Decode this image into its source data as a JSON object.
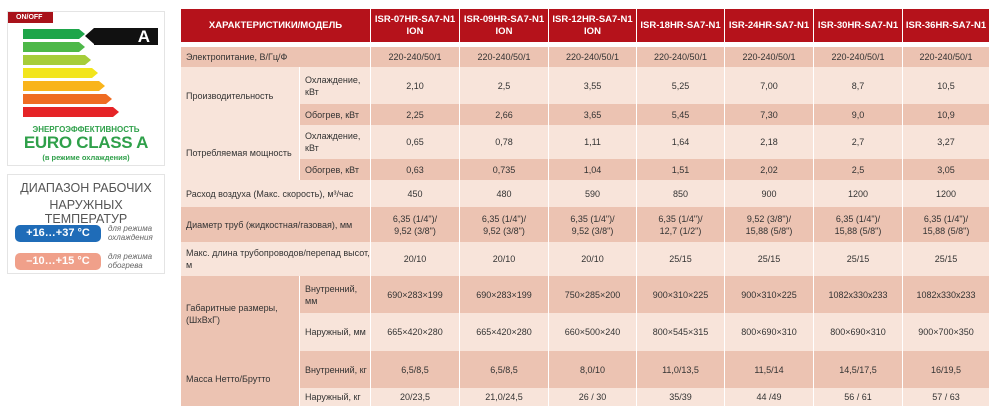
{
  "energy_label": {
    "onoff": "ON/OFF",
    "class_letter": "A",
    "title": "ЭНЕРГОЭФФЕКТИВНОСТЬ",
    "class_text": "EURO CLASS A",
    "note": "(в режиме охлаждения)",
    "bar_colors": [
      "#1ea54a",
      "#4db848",
      "#a6cd3a",
      "#f2e51c",
      "#f9b41b",
      "#ef6c23",
      "#e52427"
    ]
  },
  "temp_range": {
    "title1": "ДИАПАЗОН РАБОЧИХ",
    "title2": "НАРУЖНЫХ ТЕМПЕРАТУР",
    "cool_range": "+16…+37 °C",
    "cool_note": "для режима охлаждения",
    "heat_range": "–10…+15 °C",
    "heat_note": "для режима обогрева",
    "cool_color": "#1f6cb8",
    "heat_color": "#f0a08a"
  },
  "table": {
    "header": "ХАРАКТЕРИСТИКИ/МОДЕЛЬ",
    "models": [
      [
        "ISR-07HR-SA7-N1",
        "ION"
      ],
      [
        "ISR-09HR-SA7-N1",
        "ION"
      ],
      [
        "ISR-12HR-SA7-N1",
        "ION"
      ],
      [
        "ISR-18HR-SA7-N1",
        ""
      ],
      [
        "ISR-24HR-SA7-N1",
        ""
      ],
      [
        "ISR-30HR-SA7-N1",
        ""
      ],
      [
        "ISR-36HR-SA7-N1",
        ""
      ]
    ],
    "power": {
      "label": "Электропитание, В/Гц/Ф",
      "values": [
        "220-240/50/1",
        "220-240/50/1",
        "220-240/50/1",
        "220-240/50/1",
        "220-240/50/1",
        "220-240/50/1",
        "220-240/50/1"
      ]
    },
    "capacity": {
      "label": "Производительность",
      "cool": {
        "label": "Охлаждение, кВт",
        "values": [
          "2,10",
          "2,5",
          "3,55",
          "5,25",
          "7,00",
          "8,7",
          "10,5"
        ]
      },
      "heat": {
        "label": "Обогрев, кВт",
        "values": [
          "2,25",
          "2,66",
          "3,65",
          "5,45",
          "7,30",
          "9,0",
          "10,9"
        ]
      }
    },
    "consumption": {
      "label": "Потребляемая мощность",
      "cool": {
        "label": "Охлаждение, кВт",
        "values": [
          "0,65",
          "0,78",
          "1,11",
          "1,64",
          "2,18",
          "2,7",
          "3,27"
        ]
      },
      "heat": {
        "label": "Обогрев, кВт",
        "values": [
          "0,63",
          "0,735",
          "1,04",
          "1,51",
          "2,02",
          "2,5",
          "3,05"
        ]
      }
    },
    "airflow": {
      "label": "Расход воздуха (Макс. скорость), м³/час",
      "values": [
        "450",
        "480",
        "590",
        "850",
        "900",
        "1200",
        "1200"
      ]
    },
    "pipes": {
      "label": "Диаметр труб (жидкостная/газовая), мм",
      "values": [
        [
          "6,35 (1/4\")/",
          "9,52 (3/8\")"
        ],
        [
          "6,35 (1/4\")/",
          "9,52 (3/8\")"
        ],
        [
          "6,35 (1/4\")/",
          "9,52 (3/8\")"
        ],
        [
          "6,35 (1/4\")/",
          "12,7 (1/2\")"
        ],
        [
          "9,52 (3/8\")/",
          "15,88 (5/8\")"
        ],
        [
          "6,35 (1/4\")/",
          "15,88 (5/8\")"
        ],
        [
          "6,35 (1/4\")/",
          "15,88 (5/8\")"
        ]
      ]
    },
    "max_length": {
      "label": "Макс. длина трубопроводов/перепад высот, м",
      "values": [
        "20/10",
        "20/10",
        "20/10",
        "25/15",
        "25/15",
        "25/15",
        "25/15"
      ]
    },
    "dimensions": {
      "label": "Габаритные размеры, (ШхВхГ)",
      "indoor": {
        "label": "Внутренний, мм",
        "values": [
          "690×283×199",
          "690×283×199",
          "750×285×200",
          "900×310×225",
          "900×310×225",
          "1082x330x233",
          "1082x330x233"
        ]
      },
      "outdoor": {
        "label": "Наружный, мм",
        "values": [
          "665×420×280",
          "665×420×280",
          "660×500×240",
          "800×545×315",
          "800×690×310",
          "800×690×310",
          "900×700×350"
        ]
      }
    },
    "weight": {
      "label": "Масса Нетто/Брутто",
      "indoor": {
        "label": "Внутренний, кг",
        "values": [
          "6,5/8,5",
          "6,5/8,5",
          "8,0/10",
          "11,0/13,5",
          "11,5/14",
          "14,5/17,5",
          "16/19,5"
        ]
      },
      "outdoor": {
        "label": "Наружный, кг",
        "values": [
          "20/23,5",
          "21,0/24,5",
          "26 / 30",
          "35/39",
          "44 /49",
          "56 / 61",
          "57 / 63"
        ]
      }
    }
  }
}
